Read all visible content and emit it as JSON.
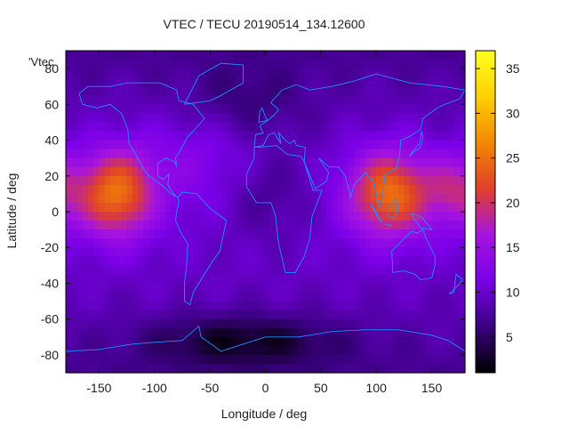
{
  "chart_data": {
    "type": "heatmap",
    "title": "VTEC / TECU 20190514_134.12600",
    "xlabel": "Longitude / deg",
    "ylabel": "Latitude / deg",
    "xlim": [
      -180,
      180
    ],
    "ylim": [
      -90,
      90
    ],
    "x_ticks": [
      -150,
      -100,
      -50,
      0,
      50,
      100,
      150
    ],
    "y_ticks": [
      -80,
      -60,
      -40,
      -20,
      0,
      20,
      40,
      60,
      80
    ],
    "legend_entry": "'Vtec",
    "colorbar": {
      "range": [
        1,
        37
      ],
      "ticks": [
        5,
        10,
        15,
        20,
        25,
        30,
        35
      ],
      "palette": [
        "#000000",
        "#3a0080",
        "#7a00e8",
        "#a614e0",
        "#e0402a",
        "#f28800",
        "#ffd000",
        "#ffff20"
      ]
    },
    "enhancement_regions": [
      {
        "lon": -135,
        "lat": 10,
        "sigma_lon": 24,
        "sigma_lat": 17,
        "amplitude": 15
      },
      {
        "lon": 112,
        "lat": 10,
        "sigma_lon": 26,
        "sigma_lat": 17,
        "amplitude": 15
      },
      {
        "lon": 170,
        "lat": 12,
        "sigma_lon": 18,
        "sigma_lat": 14,
        "amplitude": 7
      },
      {
        "lon": -60,
        "lat": 30,
        "sigma_lon": 40,
        "sigma_lat": 20,
        "amplitude": 3
      }
    ],
    "depletion_regions": [
      {
        "lon": -20,
        "lat": -72,
        "sigma_lon": 60,
        "sigma_lat": 10,
        "amplitude": -6
      },
      {
        "lon": 0,
        "lat": 10,
        "sigma_lon": 28,
        "sigma_lat": 18,
        "amplitude": -3
      },
      {
        "lon": -20,
        "lat": 60,
        "sigma_lon": 40,
        "sigma_lat": 15,
        "amplitude": -3
      }
    ],
    "background_vtec": 10,
    "coastline_color": "#1e90ff"
  }
}
